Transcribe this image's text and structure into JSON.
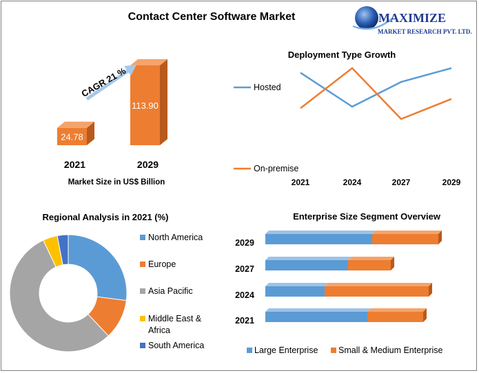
{
  "title": "Contact Center Software Market",
  "logo": {
    "name": "MAXIMIZE",
    "subtitle": "MARKET RESEARCH PVT. LTD."
  },
  "colors": {
    "blue": "#5b9bd5",
    "orange": "#ed7d31",
    "gray": "#a5a5a5",
    "yellow": "#ffc000",
    "darkblue": "#4472c4",
    "bar3d_front": "#ed7d31",
    "bar3d_side": "#b85a1c"
  },
  "chart_data": [
    {
      "type": "bar",
      "title": "",
      "categories": [
        "2021",
        "2029"
      ],
      "values": [
        24.78,
        113.9
      ],
      "data_labels": [
        "24.78",
        "113.90"
      ],
      "xlabel": "Market Size in US$ Billion",
      "ylabel": "",
      "annotation": "CAGR 21 %"
    },
    {
      "type": "line",
      "title": "Deployment Type Growth",
      "categories": [
        "2021",
        "2024",
        "2027",
        "2029"
      ],
      "series": [
        {
          "name": "Hosted",
          "values": [
            4.3,
            2.1,
            3.7,
            4.6
          ]
        },
        {
          "name": "On-premise",
          "values": [
            2.0,
            4.6,
            1.3,
            2.6
          ]
        }
      ],
      "ylim": [
        0,
        5
      ],
      "legend": "left"
    },
    {
      "type": "pie",
      "title": "Regional Analysis in 2021 (%)",
      "labels": [
        "North America",
        "Europe",
        "Asia Pacific",
        "Middle East & Africa",
        "South America"
      ],
      "values": [
        27,
        11,
        55,
        4,
        3
      ],
      "legend": "right"
    },
    {
      "type": "bar",
      "orientation": "horizontal",
      "stacked": true,
      "title": "Enterprise Size Segment Overview",
      "categories": [
        "2021",
        "2024",
        "2027",
        "2029"
      ],
      "series": [
        {
          "name": "Large Enterprise",
          "values": [
            148,
            86,
            120,
            155
          ]
        },
        {
          "name": "Small & Medium Enterprise",
          "values": [
            81,
            151,
            62,
            96
          ]
        }
      ],
      "legend": "bottom"
    }
  ]
}
